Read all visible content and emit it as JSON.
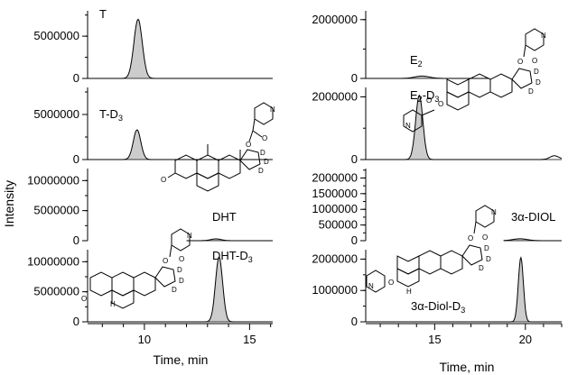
{
  "chart_data": [
    {
      "type": "area",
      "column": "left",
      "panel": "T",
      "label": "T",
      "ylim": [
        0,
        8000000
      ],
      "yticks": [
        "5000000",
        "0"
      ],
      "ytick_values": [
        5000000,
        0
      ],
      "xlim": [
        7.3,
        16.1
      ],
      "peak": {
        "center": 9.7,
        "height": 7000000,
        "sigma": 0.2
      },
      "fill": "#cccccc"
    },
    {
      "type": "area",
      "column": "left",
      "panel": "T-D3",
      "label": "T-D",
      "label_sub": "3",
      "ylim": [
        0,
        8000000
      ],
      "yticks": [
        "5000000",
        "0"
      ],
      "ytick_values": [
        5000000,
        0
      ],
      "xlim": [
        7.3,
        16.1
      ],
      "peak": {
        "center": 9.65,
        "height": 3300000,
        "sigma": 0.18
      },
      "fill": "#cccccc"
    },
    {
      "type": "area",
      "column": "left",
      "panel": "DHT",
      "label": "DHT",
      "ylim": [
        0,
        12000000
      ],
      "yticks": [
        "10000000",
        "5000000",
        "0"
      ],
      "ytick_values": [
        10000000,
        5000000,
        0
      ],
      "xlim": [
        7.3,
        16.1
      ],
      "trace_start": 12.0,
      "peak": {
        "center": 13.4,
        "height": 300000,
        "sigma": 0.25
      },
      "fill": "#cccccc"
    },
    {
      "type": "area",
      "column": "left",
      "panel": "DHT-D3",
      "label": "DHT-D",
      "label_sub": "3",
      "ylim": [
        0,
        12000000
      ],
      "yticks": [
        "10000000",
        "5000000",
        "0"
      ],
      "ytick_values": [
        10000000,
        5000000,
        0
      ],
      "xlim": [
        7.3,
        16.1
      ],
      "peak": {
        "center": 13.55,
        "height": 10800000,
        "sigma": 0.17
      },
      "fill": "#cccccc",
      "xticks": [
        "10",
        "15"
      ],
      "xtick_values": [
        10,
        15
      ]
    },
    {
      "type": "area",
      "column": "right",
      "panel": "E2",
      "label": "E",
      "label_sub": "2",
      "ylim": [
        0,
        2300000
      ],
      "yticks": [
        "2000000",
        "0"
      ],
      "ytick_values": [
        2000000,
        0
      ],
      "xlim": [
        11.2,
        22.0
      ],
      "trace_end": 18.0,
      "peak": {
        "center": 14.3,
        "height": 80000,
        "sigma": 0.4
      },
      "fill": "#cccccc"
    },
    {
      "type": "area",
      "column": "right",
      "panel": "E2-D3",
      "label": "E",
      "label_sub": "2",
      "label_suffix": "-D",
      "label_sub2": "3",
      "ylim": [
        0,
        2300000
      ],
      "yticks": [
        "2000000",
        "0"
      ],
      "ytick_values": [
        2000000,
        0
      ],
      "xlim": [
        11.2,
        22.0
      ],
      "peak": {
        "center": 14.15,
        "height": 2050000,
        "sigma": 0.2
      },
      "bump": {
        "center": 21.6,
        "height": 120000,
        "sigma": 0.25
      },
      "fill": "#cccccc"
    },
    {
      "type": "area",
      "column": "right",
      "panel": "3a-DIOL",
      "label": "3α-DIOL",
      "ylim": [
        0,
        2300000
      ],
      "yticks": [
        "2000000",
        "1500000",
        "1000000",
        "500000",
        "0"
      ],
      "ytick_values": [
        2000000,
        1500000,
        1000000,
        500000,
        0
      ],
      "xlim": [
        11.2,
        22.0
      ],
      "trace_start": 18.8,
      "peak": {
        "center": 19.7,
        "height": 60000,
        "sigma": 0.4
      },
      "fill": "#cccccc"
    },
    {
      "type": "area",
      "column": "right",
      "panel": "3a-Diol-D3",
      "label": "3α-Diol-D",
      "label_sub": "3",
      "ylim": [
        0,
        2300000
      ],
      "yticks": [
        "2000000",
        "1000000",
        "0"
      ],
      "ytick_values": [
        2000000,
        1000000,
        0
      ],
      "xlim": [
        11.2,
        22.0
      ],
      "peak": {
        "center": 19.75,
        "height": 2050000,
        "sigma": 0.14
      },
      "fill": "#cccccc",
      "xticks": [
        "15",
        "20"
      ],
      "xtick_values": [
        15,
        20
      ]
    }
  ],
  "axes": {
    "ylabel": "Intensity",
    "xlabel_left": "Time, min",
    "xlabel_right": "Time, min"
  },
  "structures": {
    "deuterium": "D",
    "hydrogen": "H",
    "oxygen": "O",
    "nitrogen": "N"
  }
}
